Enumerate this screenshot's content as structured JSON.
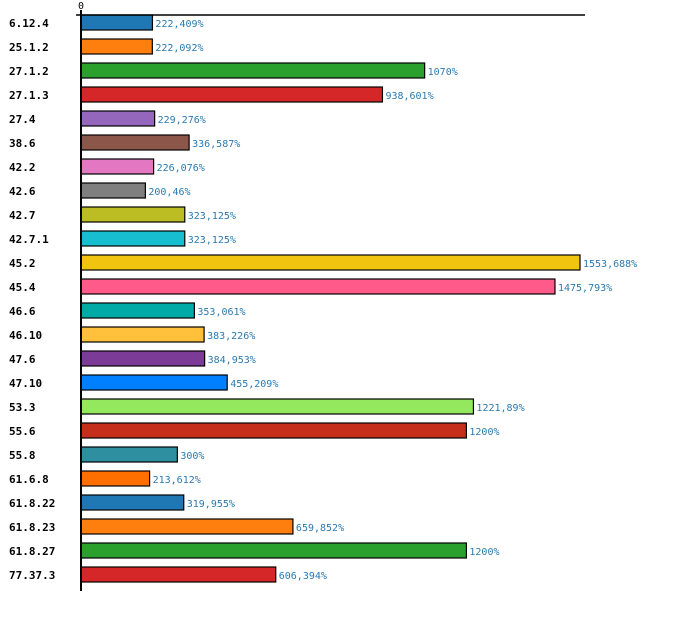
{
  "chart_data": {
    "type": "bar",
    "orientation": "horizontal",
    "title": "",
    "xlabel": "",
    "ylabel": "",
    "xlim": [
      0,
      1570
    ],
    "x_ticks": [
      "0"
    ],
    "grid": false,
    "legend": "none",
    "value_suffix": "%",
    "categories": [
      "6.12.4",
      "25.1.2",
      "27.1.2",
      "27.1.3",
      "27.4",
      "38.6",
      "42.2",
      "42.6",
      "42.7",
      "42.7.1",
      "45.2",
      "45.4",
      "46.6",
      "46.10",
      "47.6",
      "47.10",
      "53.3",
      "55.6",
      "55.8",
      "61.6.8",
      "61.8.22",
      "61.8.23",
      "61.8.27",
      "77.37.3"
    ],
    "values": [
      222.409,
      222.092,
      1070,
      938.601,
      229.276,
      336.587,
      226.076,
      200.46,
      323.125,
      323.125,
      1553.688,
      1475.793,
      353.061,
      383.226,
      384.953,
      455.209,
      1221.89,
      1200,
      300,
      213.612,
      319.955,
      659.852,
      1200,
      606.394
    ],
    "value_labels": [
      "222,409%",
      "222,092%",
      "1070%",
      "938,601%",
      "229,276%",
      "336,587%",
      "226,076%",
      "200,46%",
      "323,125%",
      "323,125%",
      "1553,688%",
      "1475,793%",
      "353,061%",
      "383,226%",
      "384,953%",
      "455,209%",
      "1221,89%",
      "1200%",
      "300%",
      "213,612%",
      "319,955%",
      "659,852%",
      "1200%",
      "606,394%"
    ],
    "colors": [
      "#1f77b4",
      "#ff7f0e",
      "#2ca02c",
      "#d62728",
      "#9467bd",
      "#8c564b",
      "#e377c2",
      "#7f7f7f",
      "#bcbd22",
      "#17becf",
      "#f1c40f",
      "#ff5a8a",
      "#00aaa6",
      "#ffc13b",
      "#7b3b96",
      "#0080ff",
      "#94e85e",
      "#c42e1a",
      "#2e8fa0",
      "#ff6f00",
      "#1f77b4",
      "#ff7f0e",
      "#2ca02c",
      "#d62728"
    ]
  }
}
